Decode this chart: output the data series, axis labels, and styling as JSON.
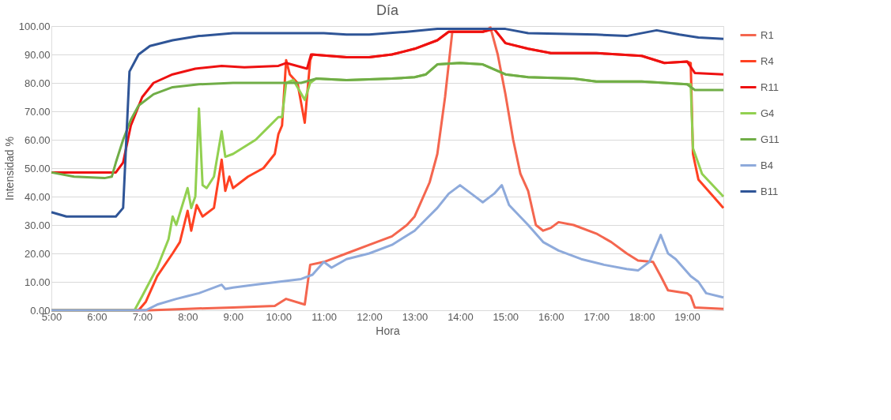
{
  "chart_data": {
    "type": "line",
    "title": "Día",
    "xlabel": "Hora",
    "ylabel": "Intensidad %",
    "xlim": [
      5,
      19.8
    ],
    "xticks": [
      {
        "value": 5,
        "label": "5:00"
      },
      {
        "value": 6,
        "label": "6:00"
      },
      {
        "value": 7,
        "label": "7:00"
      },
      {
        "value": 8,
        "label": "8:00"
      },
      {
        "value": 9,
        "label": "9:00"
      },
      {
        "value": 10,
        "label": "10:00"
      },
      {
        "value": 11,
        "label": "11:00"
      },
      {
        "value": 12,
        "label": "12:00"
      },
      {
        "value": 13,
        "label": "13:00"
      },
      {
        "value": 14,
        "label": "14:00"
      },
      {
        "value": 15,
        "label": "15:00"
      },
      {
        "value": 16,
        "label": "16:00"
      },
      {
        "value": 17,
        "label": "17:00"
      },
      {
        "value": 18,
        "label": "18:00"
      },
      {
        "value": 19,
        "label": "19:00"
      }
    ],
    "ylim": [
      0,
      100
    ],
    "yticks": [
      {
        "value": 0,
        "label": "0.00"
      },
      {
        "value": 10,
        "label": "10.00"
      },
      {
        "value": 20,
        "label": "20.00"
      },
      {
        "value": 30,
        "label": "30.00"
      },
      {
        "value": 40,
        "label": "40.00"
      },
      {
        "value": 50,
        "label": "50.00"
      },
      {
        "value": 60,
        "label": "60.00"
      },
      {
        "value": 70,
        "label": "70.00"
      },
      {
        "value": 80,
        "label": "80.00"
      },
      {
        "value": 90,
        "label": "90.00"
      },
      {
        "value": 100,
        "label": "100.00"
      }
    ],
    "grid": "y",
    "legend": "right",
    "marker": "none",
    "line_style": "solid",
    "series": [
      {
        "name": "R1",
        "color": "#f4664f",
        "x": [
          5,
          7.17,
          8,
          9,
          9.92,
          10.17,
          10.58,
          10.7,
          11,
          11.5,
          12,
          12.5,
          12.83,
          13,
          13.33,
          13.5,
          13.67,
          13.83,
          14.5,
          14.67,
          14.83,
          15,
          15.17,
          15.33,
          15.5,
          15.67,
          15.83,
          16,
          16.17,
          16.5,
          17,
          17.33,
          17.67,
          17.92,
          18.25,
          18.42,
          18.58,
          19,
          19.08,
          19.17,
          19.8
        ],
        "values": [
          0,
          0,
          0.5,
          1,
          1.5,
          4,
          2,
          16,
          17,
          20,
          23,
          26,
          30,
          33,
          45,
          55,
          75,
          98,
          98,
          99.5,
          90,
          76,
          60,
          48,
          42,
          30,
          28,
          29,
          31,
          30,
          27,
          24,
          20,
          17.5,
          17,
          12,
          7,
          6,
          5,
          1,
          0.5
        ]
      },
      {
        "name": "R4",
        "color": "#ff4122",
        "x": [
          5,
          6.92,
          7.08,
          7.33,
          7.67,
          7.83,
          8,
          8.08,
          8.2,
          8.33,
          8.58,
          8.75,
          8.83,
          8.92,
          9,
          9.33,
          9.67,
          9.92,
          10,
          10.08,
          10.17,
          10.25,
          10.42,
          10.58,
          10.7,
          10.75,
          11.5,
          12,
          12.5,
          13,
          13.5,
          13.75,
          14.5,
          14.75,
          15,
          15.5,
          16,
          17,
          18,
          18.5,
          19,
          19.08,
          19.13,
          19.25,
          19.58,
          19.8
        ],
        "values": [
          0,
          0,
          3,
          12,
          20,
          24,
          35,
          28,
          37,
          33,
          36,
          53,
          42,
          47,
          43,
          47,
          50,
          55,
          62,
          65,
          88,
          83,
          80,
          66,
          88,
          90,
          89,
          89,
          90,
          92,
          95,
          98,
          98,
          99,
          94,
          92,
          90.5,
          90.5,
          89.5,
          87,
          87.5,
          87,
          55,
          46,
          40,
          36
        ]
      },
      {
        "name": "R11",
        "color": "#ee1111",
        "x": [
          5,
          6.42,
          6.58,
          6.75,
          7,
          7.25,
          7.67,
          8.17,
          8.75,
          9.25,
          10,
          10.17,
          10.63,
          10.72,
          11.5,
          12,
          12.5,
          13,
          13.5,
          13.75,
          14.5,
          14.75,
          15,
          15.5,
          16,
          17,
          18,
          18.5,
          19,
          19.17,
          19.8
        ],
        "values": [
          48.5,
          48.5,
          52,
          65,
          75,
          80,
          83,
          85,
          86,
          85.5,
          86,
          87,
          85,
          90,
          89,
          89,
          90,
          92,
          95,
          98,
          98,
          99,
          94,
          92,
          90.5,
          90.5,
          89.5,
          87,
          87.5,
          83.5,
          83
        ]
      },
      {
        "name": "G4",
        "color": "#92d050",
        "x": [
          5,
          6.83,
          7,
          7.33,
          7.58,
          7.67,
          7.75,
          8,
          8.08,
          8.17,
          8.25,
          8.33,
          8.42,
          8.58,
          8.75,
          8.83,
          9,
          9.5,
          9.75,
          10,
          10.08,
          10.17,
          10.33,
          10.58,
          10.7,
          10.83,
          11.5,
          12.5,
          13,
          13.25,
          13.5,
          14,
          14.5,
          15,
          15.5,
          16.5,
          17,
          18,
          18.5,
          19,
          19.08,
          19.13,
          19.33,
          19.8
        ],
        "values": [
          0,
          0,
          5,
          15,
          25,
          33,
          30,
          43,
          36,
          40,
          71,
          44,
          43,
          47,
          63,
          54,
          55,
          60,
          64,
          68,
          68,
          80,
          81,
          74,
          80,
          81.5,
          81,
          81.5,
          82,
          83,
          86.5,
          87,
          86.5,
          83,
          82,
          81.5,
          80.5,
          80.5,
          80,
          79.5,
          79.5,
          57,
          48,
          40
        ]
      },
      {
        "name": "G11",
        "color": "#70ad47",
        "x": [
          5,
          5.5,
          6.17,
          6.33,
          6.42,
          6.58,
          6.75,
          6.92,
          7.25,
          7.67,
          8.25,
          9,
          10.5,
          10.83,
          11.5,
          12.5,
          13,
          13.25,
          13.5,
          14,
          14.5,
          15,
          15.5,
          16.5,
          17,
          18,
          18.5,
          19,
          19.17,
          19.8
        ],
        "values": [
          48.5,
          47,
          46.5,
          47,
          52,
          60,
          67,
          72,
          76,
          78.5,
          79.5,
          80,
          80,
          81.5,
          81,
          81.5,
          82,
          83,
          86.5,
          87,
          86.5,
          83,
          82,
          81.5,
          80.5,
          80.5,
          80,
          79.5,
          77.5,
          77.5
        ]
      },
      {
        "name": "B4",
        "color": "#8eaadb",
        "x": [
          5,
          7.08,
          7.33,
          7.75,
          8,
          8.25,
          8.75,
          8.83,
          9,
          9.5,
          10,
          10.5,
          10.75,
          11,
          11.17,
          11.5,
          12,
          12.5,
          13,
          13.25,
          13.5,
          13.75,
          14,
          14.25,
          14.5,
          14.75,
          14.92,
          15.08,
          15.5,
          15.83,
          16.17,
          16.67,
          17.17,
          17.67,
          17.92,
          18.17,
          18.42,
          18.58,
          18.75,
          19.08,
          19.25,
          19.42,
          19.8
        ],
        "values": [
          0,
          0,
          2,
          4,
          5,
          6,
          9,
          7.5,
          8,
          9,
          10,
          11,
          12.5,
          17,
          15,
          18,
          20,
          23,
          28,
          32,
          36,
          41,
          44,
          41,
          38,
          41,
          44,
          37,
          30,
          24,
          21,
          18,
          16,
          14.5,
          14,
          17,
          26.5,
          20,
          18,
          12,
          10,
          6,
          4.5
        ]
      },
      {
        "name": "B11",
        "color": "#2f5597",
        "x": [
          5,
          5.33,
          6.42,
          6.58,
          6.72,
          6.92,
          7.17,
          7.67,
          8.25,
          9,
          11,
          11.5,
          12,
          12.83,
          13.5,
          14,
          15,
          15.5,
          17,
          17.67,
          18.33,
          18.83,
          19.25,
          19.8
        ],
        "values": [
          34.5,
          33,
          33,
          36,
          84,
          90,
          93,
          95,
          96.5,
          97.5,
          97.5,
          97,
          97,
          98,
          99,
          99,
          99,
          97.5,
          97,
          96.5,
          98.5,
          97,
          96,
          95.5
        ]
      }
    ]
  }
}
